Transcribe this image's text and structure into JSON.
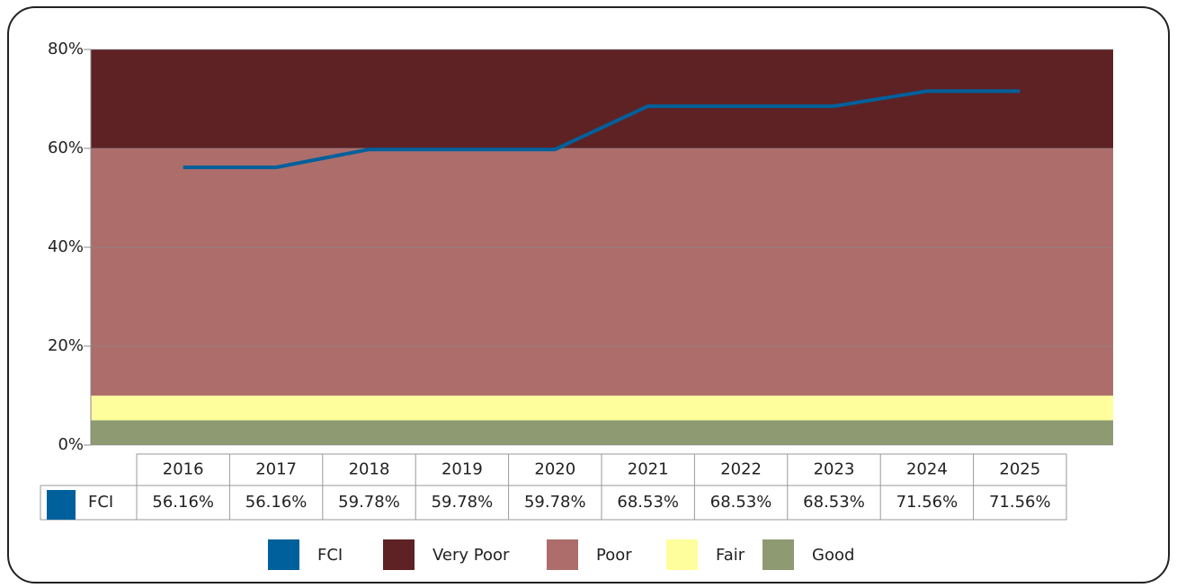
{
  "chart_data": {
    "type": "line",
    "categories": [
      "2016",
      "2017",
      "2018",
      "2019",
      "2020",
      "2021",
      "2022",
      "2023",
      "2024",
      "2025"
    ],
    "series": [
      {
        "name": "FCI",
        "color": "#00609c",
        "values": [
          56.16,
          56.16,
          59.78,
          59.78,
          59.78,
          68.53,
          68.53,
          68.53,
          71.56,
          71.56
        ],
        "value_labels": [
          "56.16%",
          "56.16%",
          "59.78%",
          "59.78%",
          "59.78%",
          "68.53%",
          "68.53%",
          "68.53%",
          "71.56%",
          "71.56%"
        ]
      }
    ],
    "bands": [
      {
        "name": "Very Poor",
        "color": "#5e2224",
        "from": 60,
        "to": 80
      },
      {
        "name": "Poor",
        "color": "#ad6e6b",
        "from": 10,
        "to": 60
      },
      {
        "name": "Fair",
        "color": "#fefe9c",
        "from": 5,
        "to": 10
      },
      {
        "name": "Good",
        "color": "#8e9a72",
        "from": 0,
        "to": 5
      }
    ],
    "ylim": [
      0,
      80
    ],
    "yticks": [
      {
        "value": 0,
        "label": "0%"
      },
      {
        "value": 20,
        "label": "20%"
      },
      {
        "value": 40,
        "label": "40%"
      },
      {
        "value": 60,
        "label": "60%"
      },
      {
        "value": 80,
        "label": "80%"
      }
    ],
    "grid": true
  }
}
